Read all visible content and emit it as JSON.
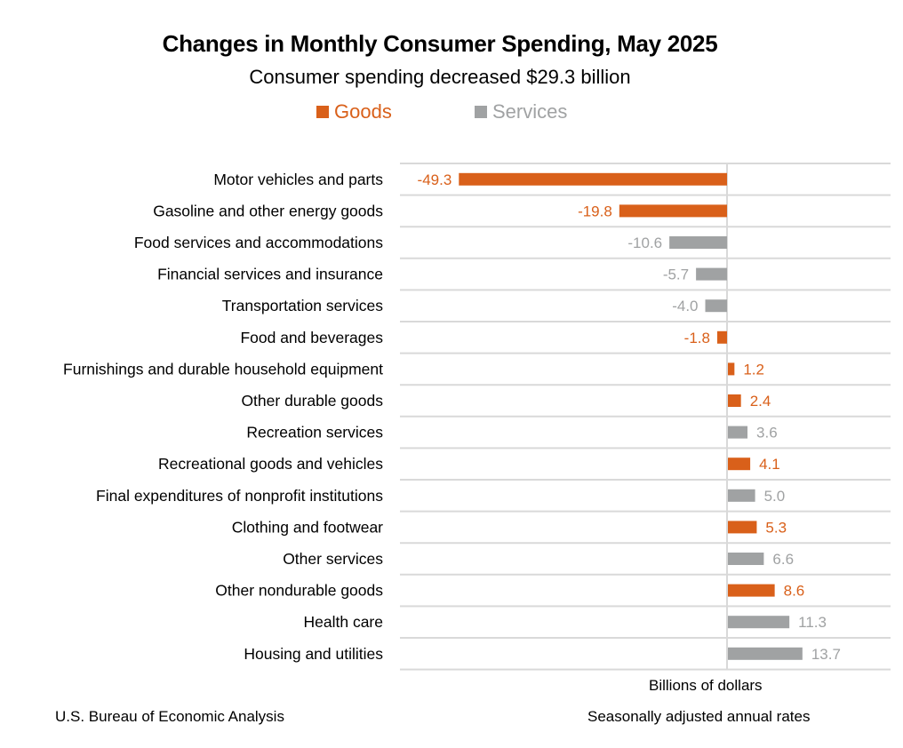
{
  "chart_data": {
    "type": "bar",
    "orientation": "horizontal",
    "title": "Changes in Monthly Consumer Spending, May 2025",
    "subtitle": "Consumer spending decreased $29.3 billion",
    "xlabel": "Billions of dollars",
    "ylabel": "",
    "xlim": [
      -55,
      30
    ],
    "grid": true,
    "legend_position": "top-center",
    "legend": [
      {
        "name": "Goods",
        "color": "#D9601A"
      },
      {
        "name": "Services",
        "color": "#A0A2A3"
      }
    ],
    "categories": [
      "Motor vehicles and parts",
      "Gasoline and other energy goods",
      "Food services and accommodations",
      "Financial services and insurance",
      "Transportation services",
      "Food and beverages",
      "Furnishings and durable household equipment",
      "Other durable goods",
      "Recreation services",
      "Recreational goods and vehicles",
      "Final expenditures of nonprofit institutions",
      "Clothing and footwear",
      "Other services",
      "Other nondurable goods",
      "Health care",
      "Housing and utilities"
    ],
    "values": [
      -49.3,
      -19.8,
      -10.6,
      -5.7,
      -4.0,
      -1.8,
      1.2,
      2.4,
      3.6,
      4.1,
      5.0,
      5.3,
      6.6,
      8.6,
      11.3,
      13.7
    ],
    "value_labels": [
      "-49.3",
      "-19.8",
      "-10.6",
      "-5.7",
      "-4.0",
      "-1.8",
      "1.2",
      "2.4",
      "3.6",
      "4.1",
      "5.0",
      "5.3",
      "6.6",
      "8.6",
      "11.3",
      "13.7"
    ],
    "series_membership": [
      "Goods",
      "Goods",
      "Services",
      "Services",
      "Services",
      "Goods",
      "Goods",
      "Goods",
      "Services",
      "Goods",
      "Services",
      "Goods",
      "Services",
      "Goods",
      "Services",
      "Services"
    ]
  },
  "colors": {
    "goods": "#D9601A",
    "services": "#A0A2A3",
    "gridline": "#D9D9D9"
  },
  "footer": {
    "source": "U.S. Bureau of Economic Analysis",
    "note": "Seasonally adjusted annual rates"
  }
}
